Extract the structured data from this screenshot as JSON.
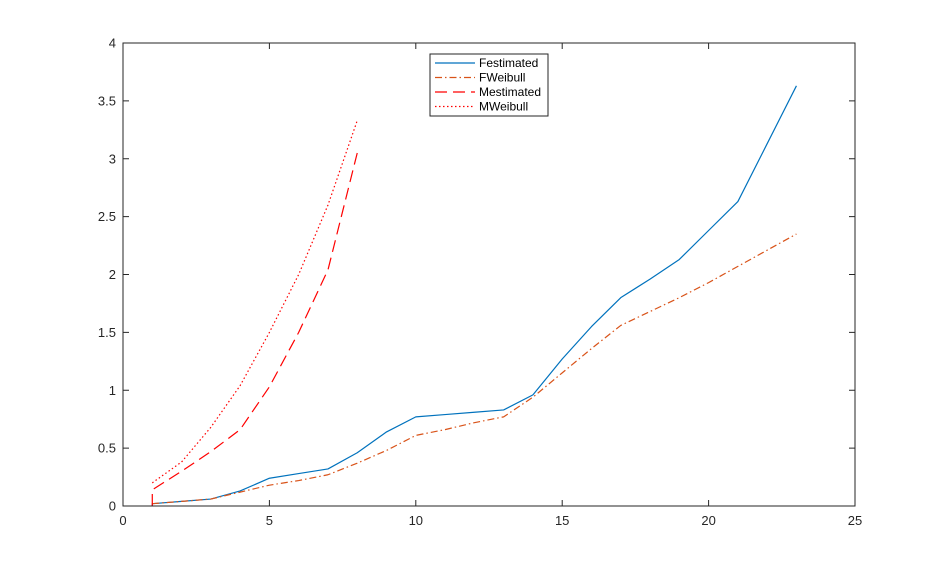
{
  "chart_data": {
    "type": "line",
    "title": "",
    "xlabel": "",
    "ylabel": "",
    "xlim": [
      0,
      25
    ],
    "ylim": [
      0,
      4
    ],
    "xticks": [
      0,
      5,
      10,
      15,
      20,
      25
    ],
    "yticks": [
      0,
      0.5,
      1,
      1.5,
      2,
      2.5,
      3,
      3.5,
      4
    ],
    "xtick_labels": [
      "0",
      "5",
      "10",
      "15",
      "20",
      "25"
    ],
    "ytick_labels": [
      "0",
      "0.5",
      "1",
      "1.5",
      "2",
      "2.5",
      "3",
      "3.5",
      "4"
    ],
    "grid": false,
    "legend_position": "top-center",
    "series": [
      {
        "name": "Festimated",
        "color": "#0072BD",
        "dash": "solid",
        "points": [
          [
            1,
            0
          ],
          [
            1,
            0.02
          ],
          [
            2,
            0.04
          ],
          [
            3,
            0.06
          ],
          [
            4,
            0.13
          ],
          [
            5,
            0.24
          ],
          [
            6,
            0.28
          ],
          [
            7,
            0.32
          ],
          [
            8,
            0.46
          ],
          [
            9,
            0.64
          ],
          [
            10,
            0.77
          ],
          [
            11,
            0.79
          ],
          [
            12,
            0.81
          ],
          [
            13,
            0.83
          ],
          [
            14,
            0.96
          ],
          [
            15,
            1.27
          ],
          [
            16,
            1.55
          ],
          [
            17,
            1.8
          ],
          [
            18,
            1.96
          ],
          [
            19,
            2.13
          ],
          [
            20,
            2.38
          ],
          [
            21,
            2.63
          ],
          [
            22,
            3.13
          ],
          [
            23,
            3.63
          ]
        ]
      },
      {
        "name": "FWeibull",
        "color": "#D95319",
        "dash": "dash-dot",
        "points": [
          [
            1,
            0.02
          ],
          [
            2,
            0.04
          ],
          [
            3,
            0.06
          ],
          [
            4,
            0.12
          ],
          [
            5,
            0.18
          ],
          [
            6,
            0.22
          ],
          [
            7,
            0.27
          ],
          [
            8,
            0.37
          ],
          [
            9,
            0.48
          ],
          [
            10,
            0.61
          ],
          [
            11,
            0.66
          ],
          [
            12,
            0.72
          ],
          [
            13,
            0.77
          ],
          [
            14,
            0.94
          ],
          [
            15,
            1.15
          ],
          [
            16,
            1.36
          ],
          [
            17,
            1.56
          ],
          [
            18,
            1.68
          ],
          [
            19,
            1.8
          ],
          [
            20,
            1.93
          ],
          [
            21,
            2.07
          ],
          [
            22,
            2.21
          ],
          [
            23,
            2.35
          ]
        ]
      },
      {
        "name": "Mestimated",
        "color": "#FF0000",
        "dash": "dashed",
        "points": [
          [
            1,
            0
          ],
          [
            1,
            0.14
          ],
          [
            2,
            0.3
          ],
          [
            3,
            0.47
          ],
          [
            4,
            0.66
          ],
          [
            5,
            1.03
          ],
          [
            6,
            1.5
          ],
          [
            7,
            2.04
          ],
          [
            8,
            3.05
          ]
        ]
      },
      {
        "name": "MWeibull",
        "color": "#FF0000",
        "dash": "dotted",
        "points": [
          [
            1,
            0.2
          ],
          [
            2,
            0.38
          ],
          [
            3,
            0.68
          ],
          [
            4,
            1.04
          ],
          [
            5,
            1.5
          ],
          [
            6,
            2.0
          ],
          [
            7,
            2.6
          ],
          [
            8,
            3.33
          ]
        ]
      }
    ]
  }
}
